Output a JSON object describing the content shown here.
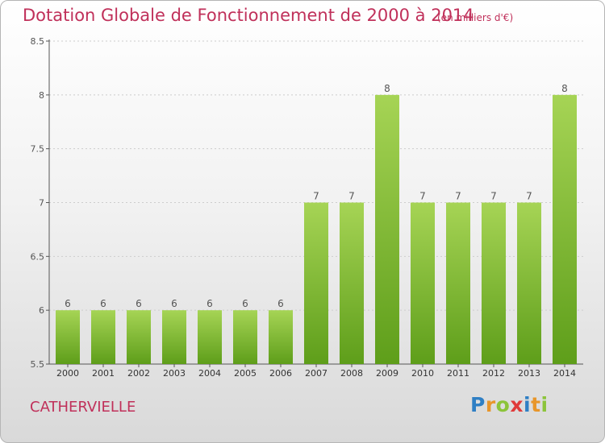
{
  "header": {
    "title": "Dotation Globale de Fonctionnement de 2000 à 2014",
    "unit": "(en milliers d'€)"
  },
  "footer": {
    "town": "CATHERVIELLE",
    "brand": [
      "P",
      "r",
      "o",
      "x",
      "i",
      "t",
      "i"
    ]
  },
  "colors": {
    "bar_top": "#a6d455",
    "bar_bottom": "#5e9e1a",
    "title": "#c0305a",
    "axis": "#555555",
    "grid": "#cccccc"
  },
  "chart_data": {
    "type": "bar",
    "title": "Dotation Globale de Fonctionnement de 2000 à 2014",
    "subtitle": "(en milliers d'€)",
    "categories": [
      "2000",
      "2001",
      "2002",
      "2003",
      "2004",
      "2005",
      "2006",
      "2007",
      "2008",
      "2009",
      "2010",
      "2011",
      "2012",
      "2013",
      "2014"
    ],
    "values": [
      6,
      6,
      6,
      6,
      6,
      6,
      6,
      7,
      7,
      8,
      7,
      7,
      7,
      7,
      8
    ],
    "labels": [
      "6",
      "6",
      "6",
      "6",
      "6",
      "6",
      "6",
      "7",
      "7",
      "8",
      "7",
      "7",
      "7",
      "7",
      "8"
    ],
    "y_ticks": [
      "5.5",
      "6",
      "6.5",
      "7",
      "7.5",
      "8",
      "8.5"
    ],
    "ylim": [
      5.5,
      8.5
    ],
    "xlabel": "",
    "ylabel": "",
    "grid": "horizontal"
  }
}
